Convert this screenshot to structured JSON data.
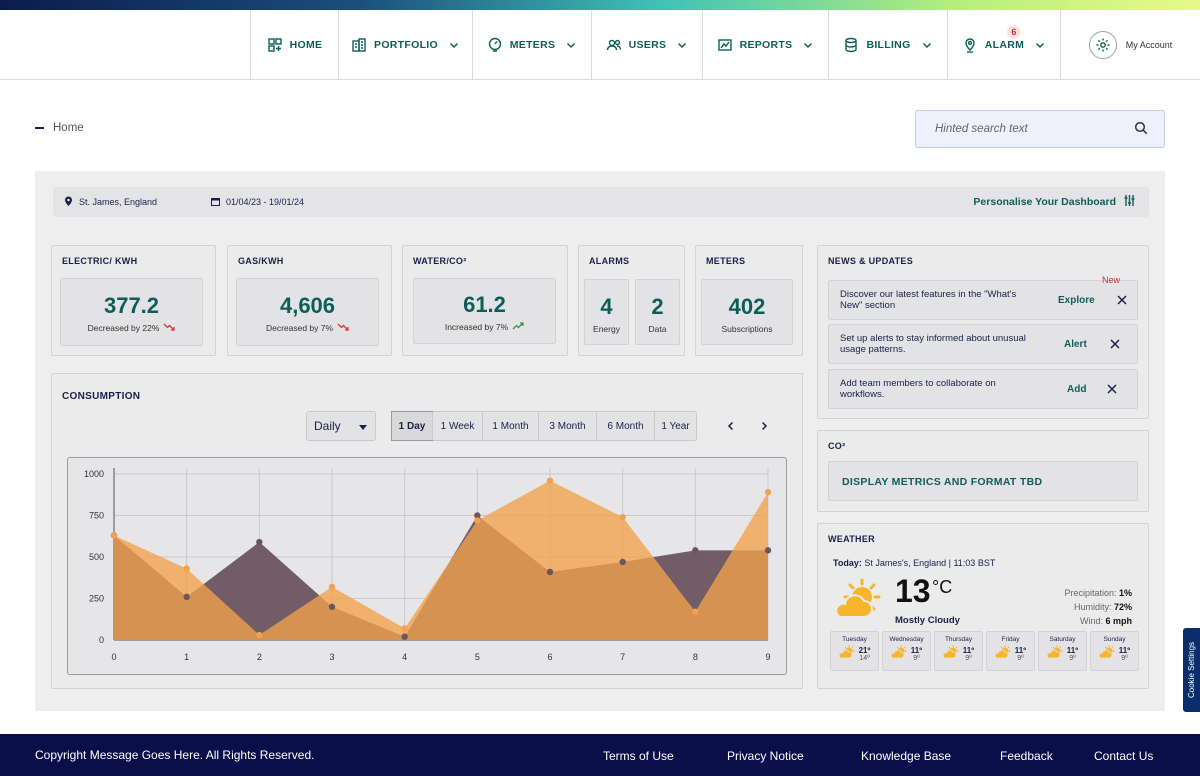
{
  "nav": {
    "home": "HOME",
    "portfolio": "PORTFOLIO",
    "meters": "METERS",
    "users": "USERS",
    "reports": "REPORTS",
    "billing": "BILLING",
    "alarm": "ALARM",
    "alarm_count": "6",
    "account": "My Account"
  },
  "breadcrumb": {
    "current": "Home"
  },
  "search": {
    "placeholder": "Hinted search text"
  },
  "filters": {
    "location": "St. James, England",
    "date_range": "01/04/23 - 19/01/24",
    "personalise": "Personalise Your Dashboard"
  },
  "kpis": {
    "electric": {
      "title": "ELECTRIC/ KWH",
      "value": "377.2",
      "change": "Decreased by 22%"
    },
    "gas": {
      "title": "GAS/KWH",
      "value": "4,606",
      "change": "Decreased by 7%"
    },
    "water": {
      "title": "WATER/CO²",
      "value": "61.2",
      "change": "Increased by 7%"
    },
    "alarms": {
      "title": "ALARMS",
      "energy_value": "4",
      "energy_label": "Energy",
      "data_value": "2",
      "data_label": "Data"
    },
    "meters": {
      "title": "METERS",
      "value": "402",
      "label": "Subscriptions"
    }
  },
  "consumption": {
    "title": "CONSUMPTION",
    "period_select": "Daily",
    "tabs": [
      "1 Day",
      "1 Week",
      "1 Month",
      "3 Month",
      "6 Month",
      "1 Year"
    ],
    "active_tab": "1 Day"
  },
  "chart_data": {
    "type": "area",
    "x": [
      0,
      1,
      2,
      3,
      4,
      5,
      6,
      7,
      8,
      9
    ],
    "ylim": [
      0,
      1000
    ],
    "yticks": [
      0,
      250,
      500,
      750,
      1000
    ],
    "grid": true,
    "series": [
      {
        "values": [
          630,
          430,
          30,
          320,
          70,
          720,
          960,
          740,
          170,
          890
        ],
        "color": "#f2a14c"
      },
      {
        "values": [
          630,
          260,
          590,
          200,
          20,
          750,
          410,
          470,
          540,
          540
        ],
        "color": "#6b5560"
      }
    ]
  },
  "news": {
    "title": "NEWS & UPDATES",
    "items": [
      {
        "text": "Discover our latest features in the \"What's New\" section",
        "action": "Explore",
        "badge": "New"
      },
      {
        "text": "Set up alerts to stay informed about unusual usage patterns.",
        "action": "Alert"
      },
      {
        "text": "Add team members to collaborate on workflows.",
        "action": "Add"
      }
    ]
  },
  "co2": {
    "title": "CO²",
    "body": "DISPLAY METRICS AND FORMAT TBD"
  },
  "weather": {
    "title": "WEATHER",
    "today_label": "Today:",
    "today_detail": "St James's, England | 11:03 BST",
    "temp": "13",
    "unit": "°C",
    "condition": "Mostly Cloudy",
    "precip_label": "Precipitation:",
    "precip": "1%",
    "humidity_label": "Humidity:",
    "humidity": "72%",
    "wind_label": "Wind:",
    "wind": "6 mph",
    "forecast": [
      {
        "day": "Tuesday",
        "hi": "21º",
        "lo": "14º"
      },
      {
        "day": "Wednesday",
        "hi": "11º",
        "lo": "9º"
      },
      {
        "day": "Thursday",
        "hi": "11º",
        "lo": "9º"
      },
      {
        "day": "Friday",
        "hi": "11º",
        "lo": "9º"
      },
      {
        "day": "Saturday",
        "hi": "11º",
        "lo": "9º"
      },
      {
        "day": "Sunday",
        "hi": "11º",
        "lo": "9º"
      }
    ]
  },
  "footer": {
    "copyright": "Copyright Message Goes Here. All Rights Reserved.",
    "links": [
      "Terms of Use",
      "Privacy Notice",
      "Knowledge Base",
      "Feedback",
      "Contact Us"
    ]
  },
  "cookie": "Cookie Settings",
  "colors": {
    "brand": "#0d5e58",
    "navy": "#0a0f4a",
    "orange": "#f2a14c",
    "plum": "#6b5560"
  }
}
